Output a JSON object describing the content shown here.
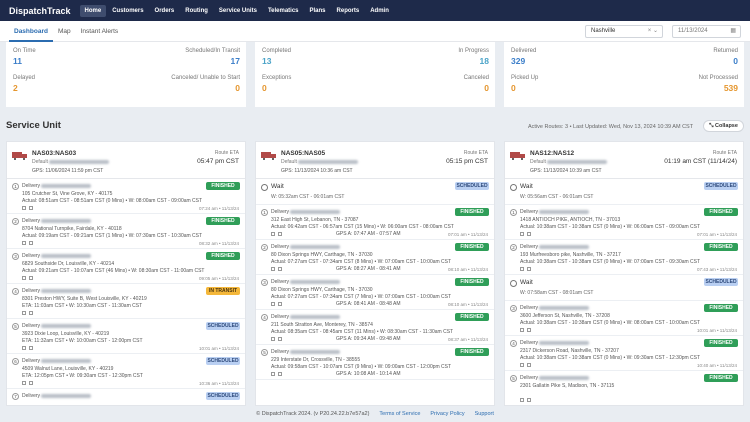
{
  "nav": {
    "logo": "DispatchTrack",
    "items": [
      "Home",
      "Customers",
      "Orders",
      "Routing",
      "Service Units",
      "Telematics",
      "Plans",
      "Reports",
      "Admin"
    ]
  },
  "subnav": {
    "tabs": [
      "Dashboard",
      "Map",
      "Instant Alerts"
    ],
    "hub": "Nashville",
    "date_placeholder": "11/13/2024"
  },
  "stats": [
    {
      "label_a": "On Time",
      "value_a": "11",
      "label_b": "Scheduled/In Transit",
      "value_b": "17",
      "label_c": "Delayed",
      "value_c": "2",
      "label_d": "Canceled/ Unable to Start",
      "value_d": "0"
    },
    {
      "label_a": "Completed",
      "value_a": "13",
      "label_b": "In Progress",
      "value_b": "18",
      "label_c": "Exceptions",
      "value_c": "0",
      "label_d": "Canceled",
      "value_d": "0"
    },
    {
      "label_a": "Delivered",
      "value_a": "329",
      "label_b": "Returned",
      "value_b": "0",
      "label_c": "Picked Up",
      "value_c": "0",
      "label_d": "Not Processed",
      "value_d": "539"
    }
  ],
  "service_unit": {
    "title": "Service Unit",
    "active_routes": "Active Routes: 3",
    "last_updated": "Last Updated: Wed, Nov 13, 2024 10:39 AM CST",
    "collapse": "Collapse"
  },
  "routes": [
    {
      "id": "NAS03:NAS03",
      "default": "Default",
      "eta_label": "Route ETA",
      "eta": "05:47 pm CST",
      "gps": "GPS: 11/06/2024 11:59 pm CST",
      "stops": [
        {
          "type": "stop",
          "num": "1",
          "badge": "FINISHED",
          "cls": "fin",
          "l1": "Delivery",
          "l2": "105 Crutcher St, Vine Grove, KY - 40175",
          "l3": "Actual: 08:51am CST - 08:51am CST (0 Mins) • W: 08:00am CST - 09:00am CST",
          "time": "07:24 am • 11/13/24"
        },
        {
          "type": "stop",
          "num": "2",
          "badge": "FINISHED",
          "cls": "fin",
          "l1": "Delivery",
          "l2": "8704 National Turnpike, Fairdale, KY - 40118",
          "l3": "Actual: 09:19am CST - 09:21am CST (1 Mins) • W: 07:30am CST - 10:30am CST",
          "time": "08:32 am • 11/13/24"
        },
        {
          "type": "stop",
          "num": "3",
          "badge": "FINISHED",
          "cls": "fin",
          "l1": "Delivery",
          "l2": "6829 Southside Dr, Louisville, KY - 40214",
          "l3": "Actual: 09:21am CST - 10:07am CST (46 Mins) • W: 08:30am CST - 11:00am CST",
          "time": "09:05 am • 11/13/24"
        },
        {
          "type": "stop",
          "num": "4",
          "badge": "IN TRANSIT",
          "cls": "trans",
          "l1": "Delivery",
          "l2": "8301 Preston HWY, Suite B, West Louisville, KY - 40219",
          "l3": "ETA: 11:03am CST • W: 10:30am CST - 11:30am CST",
          "time": ""
        },
        {
          "type": "stop",
          "num": "5",
          "badge": "SCHEDULED",
          "cls": "sch",
          "l1": "Delivery",
          "l2": "3923 Dixie Loop, Louisville, KY - 40219",
          "l3": "ETA: 11:32am CST • W: 10:00am CST - 12:00pm CST",
          "time": "10:01 am • 11/13/24"
        },
        {
          "type": "stop",
          "num": "6",
          "badge": "SCHEDULED",
          "cls": "sch",
          "l1": "Delivery",
          "l2": "4509 Walnut Lane, Louisville, KY - 40219",
          "l3": "ETA: 12:05pm CST • W: 09:30am CST - 12:30pm CST",
          "time": "10:36 am • 11/13/24"
        },
        {
          "type": "stop",
          "num": "7",
          "badge": "SCHEDULED",
          "cls": "sch",
          "l1": "Delivery",
          "l2": "",
          "l3": "",
          "time": ""
        }
      ]
    },
    {
      "id": "NAS05:NAS05",
      "default": "Default",
      "eta_label": "Route ETA",
      "eta": "05:15 pm CST",
      "gps": "GPS: 11/13/2024 10:36 am CST",
      "stops": [
        {
          "type": "wait",
          "title": "Wait",
          "badge": "SCHEDULED",
          "detail": "W: 05:32am CST - 06:01am CST"
        },
        {
          "type": "stop",
          "num": "1",
          "badge": "FINISHED",
          "cls": "fin",
          "l1": "Delivery",
          "l2": "312 East High St, Lebanon, TN - 37087",
          "l3": "Actual: 06:42am CST - 06:57am CST (15 Mins) • W: 06:00am CST - 08:00am CST",
          "time": "07:01 am • 11/13/24",
          "gps": "GPS A: 07:47 AM - 07:57 AM"
        },
        {
          "type": "stop",
          "num": "2",
          "badge": "FINISHED",
          "cls": "fin",
          "l1": "Delivery",
          "l2": "80 Dixon Springs HWY, Carthage, TN - 37030",
          "l3": "Actual: 07:27am CST - 07:34am CST (8 Mins) • W: 07:00am CST - 10:00am CST",
          "time": "08:10 am • 11/13/24",
          "gps": "GPS A: 08:27 AM - 08:41 AM"
        },
        {
          "type": "stop",
          "num": "3",
          "badge": "FINISHED",
          "cls": "fin",
          "l1": "Delivery",
          "l2": "80 Dixon Springs HWY, Carthage, TN - 37030",
          "l3": "Actual: 07:27am CST - 07:34am CST (7 Mins) • W: 07:00am CST - 10:00am CST",
          "time": "08:10 am • 11/13/24",
          "gps": "GPS A: 08:41 AM - 08:48 AM"
        },
        {
          "type": "stop",
          "num": "4",
          "badge": "FINISHED",
          "cls": "fin",
          "l1": "Delivery",
          "l2": "211 South Stratton Ave, Monterey, TN - 38574",
          "l3": "Actual: 08:35am CST - 08:45am CST (11 Mins) • W: 08:30am CST - 11:30am CST",
          "time": "08:37 am • 11/13/24",
          "gps": "GPS A: 09:34 AM - 09:48 AM"
        },
        {
          "type": "stop",
          "num": "5",
          "badge": "FINISHED",
          "cls": "fin",
          "l1": "Delivery",
          "l2": "229 Interstate Dr, Crossville, TN - 38555",
          "l3": "Actual: 09:58am CST - 10:07am CST (9 Mins) • W: 09:00am CST - 12:00pm CST",
          "time": "",
          "gps": "GPS A: 10:08 AM - 10:14 AM"
        }
      ]
    },
    {
      "id": "NAS12:NAS12",
      "default": "Default",
      "eta_label": "Route ETA",
      "eta": "01:19 am CST (11/14/24)",
      "gps": "GPS: 11/13/2024 10:39 am CST",
      "stops": [
        {
          "type": "wait",
          "title": "Wait",
          "badge": "SCHEDULED",
          "detail": "W: 05:56am CST - 06:01am CST"
        },
        {
          "type": "stop",
          "num": "1",
          "badge": "FINISHED",
          "cls": "fin",
          "l1": "Delivery",
          "l2": "1418 ANTIOCH PIKE, ANTIOCH, TN - 37013",
          "l3": "Actual: 10:38am CST - 10:38am CST (0 Mins) • W: 06:00am CST - 09:00am CST",
          "time": "07:01 am • 11/13/24"
        },
        {
          "type": "stop",
          "num": "2",
          "badge": "FINISHED",
          "cls": "fin",
          "l1": "Delivery",
          "l2": "193 Murfreesboro pike, Nashville, TN - 37217",
          "l3": "Actual: 10:38am CST - 10:38am CST (0 Mins) • W: 07:00am CST - 09:30am CST",
          "time": "07:43 am • 11/13/24"
        },
        {
          "type": "wait",
          "title": "Wait",
          "badge": "SCHEDULED",
          "detail": "W: 07:58am CST - 08:01am CST"
        },
        {
          "type": "stop",
          "num": "3",
          "badge": "FINISHED",
          "cls": "fin",
          "l1": "Delivery",
          "l2": "3600 Jefferson St, Nashville, TN - 37208",
          "l3": "Actual: 10:38am CST - 10:38am CST (0 Mins) • W: 08:00am CST - 10:00am CST",
          "time": "10:01 am • 11/13/24"
        },
        {
          "type": "stop",
          "num": "4",
          "badge": "FINISHED",
          "cls": "fin",
          "l1": "Delivery",
          "l2": "2317 Dickerson Road, Nashville, TN - 37207",
          "l3": "Actual: 10:38am CST - 10:38am CST (0 Mins) • W: 09:30am CST - 12:30pm CST",
          "time": "10:40 am • 11/13/24"
        },
        {
          "type": "stop",
          "num": "5",
          "badge": "FINISHED",
          "cls": "fin",
          "l1": "Delivery",
          "l2": "2301 Gallatin Pike S, Madison, TN - 37115",
          "l3": "",
          "time": ""
        }
      ]
    }
  ],
  "footer": {
    "copy": "© DispatchTrack 2024. (v P20.24.22.b7e57a2)",
    "terms": "Terms of Service",
    "privacy": "Privacy Policy",
    "support": "Support"
  }
}
